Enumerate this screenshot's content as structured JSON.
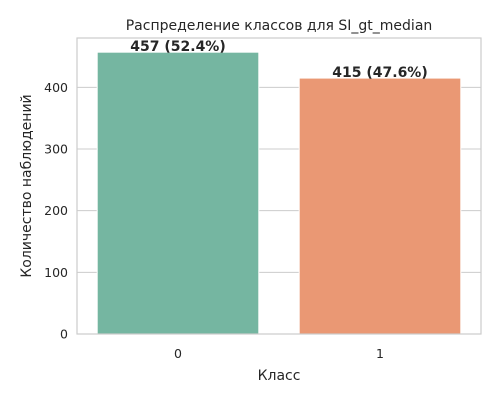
{
  "chart_data": {
    "type": "bar",
    "title": "Распределение классов для SI_gt_median",
    "xlabel": "Класс",
    "ylabel": "Количество наблюдений",
    "categories": [
      "0",
      "1"
    ],
    "values": [
      457,
      415
    ],
    "data_labels": [
      "457 (52.4%)",
      "415 (47.6%)"
    ],
    "colors": [
      "#75b6a1",
      "#ea9874"
    ],
    "ylim": [
      0,
      480
    ],
    "yticks": [
      0,
      100,
      200,
      300,
      400
    ],
    "ytick_labels": [
      "0",
      "100",
      "200",
      "300",
      "400"
    ],
    "grid": "horizontal",
    "legend": "none"
  }
}
